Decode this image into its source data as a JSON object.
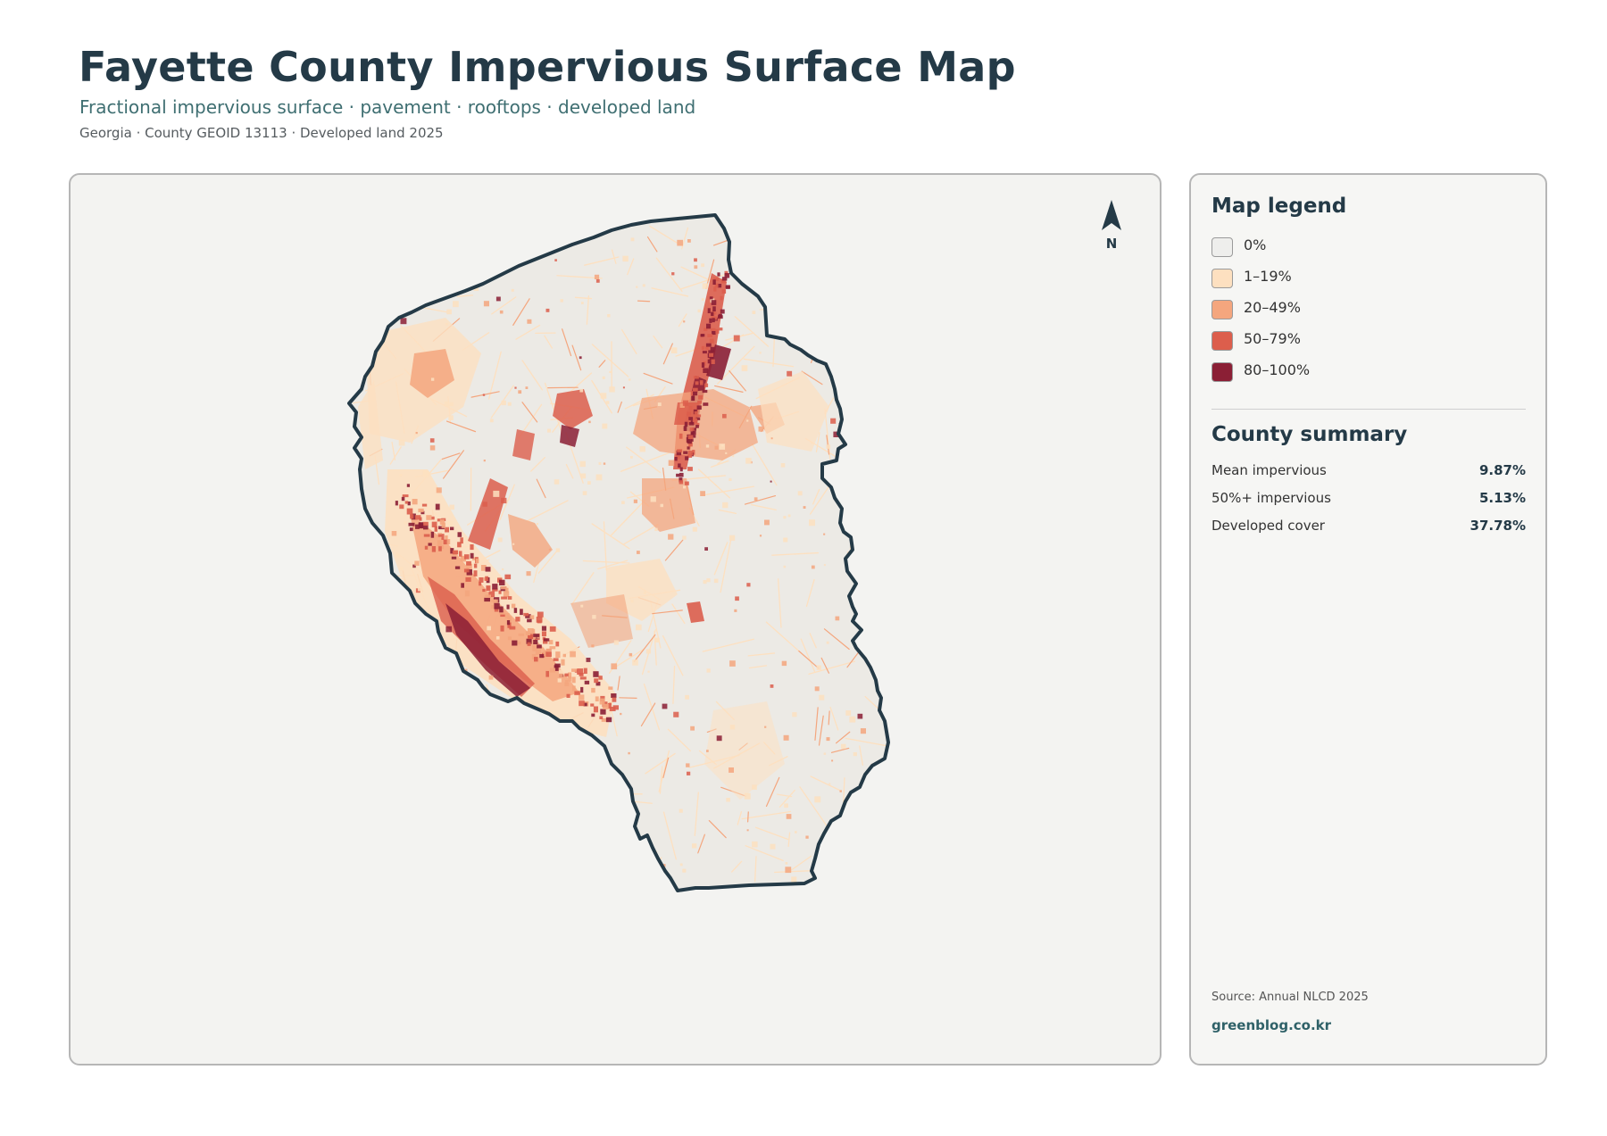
{
  "header": {
    "title": "Fayette County Impervious Surface Map",
    "subtitle": "Fractional impervious surface · pavement · rooftops · developed land",
    "meta": "Georgia · County GEOID 13113 · Developed land 2025"
  },
  "map": {
    "north_label": "N",
    "background_color": "#f3f3f1",
    "county_fill": "#eceae5",
    "boundary_color": "#243a47"
  },
  "legend": {
    "title": "Map legend",
    "items": [
      {
        "label": "0%",
        "color": "#eeeeec"
      },
      {
        "label": "1–19%",
        "color": "#fde0c0"
      },
      {
        "label": "20–49%",
        "color": "#f4a67e"
      },
      {
        "label": "50–79%",
        "color": "#dc5e4c"
      },
      {
        "label": "80–100%",
        "color": "#8b1f35"
      }
    ]
  },
  "summary": {
    "title": "County summary",
    "rows": [
      {
        "label": "Mean impervious",
        "value": "9.87%"
      },
      {
        "label": "50%+ impervious",
        "value": "5.13%"
      },
      {
        "label": "Developed cover",
        "value": "37.78%"
      }
    ]
  },
  "footer": {
    "source": "Source: Annual NLCD 2025",
    "site": "greenblog.co.kr"
  }
}
